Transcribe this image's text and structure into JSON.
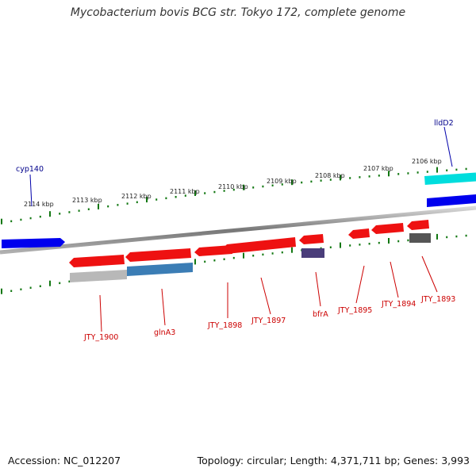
{
  "title": "Mycobacterium bovis BCG str. Tokyo 172, complete genome",
  "footer": {
    "accession": "Accession: NC_012207",
    "summary": "Topology: circular; Length: 4,371,711 bp; Genes: 3,993"
  },
  "colors": {
    "forward_label": "#00008b",
    "reverse_label": "#cc0000",
    "cds_red": "#ee1111",
    "cds_blue": "#0000ee",
    "cds_cyan": "#00dddd",
    "backbone": "#777777",
    "tick": "#117711"
  },
  "scale_labels": [
    "2114 kbp",
    "2113 kbp",
    "2112 kbp",
    "2111 kbp",
    "2110 kbp",
    "2109 kbp",
    "2108 kbp",
    "2107 kbp",
    "2106 kbp"
  ],
  "forward_labels": [
    "cyp140",
    "lldD2"
  ],
  "reverse_labels": [
    "JTY_1900",
    "glnA3",
    "JTY_1898",
    "JTY_1897",
    "bfrA",
    "JTY_1895",
    "JTY_1894",
    "JTY_1893"
  ]
}
